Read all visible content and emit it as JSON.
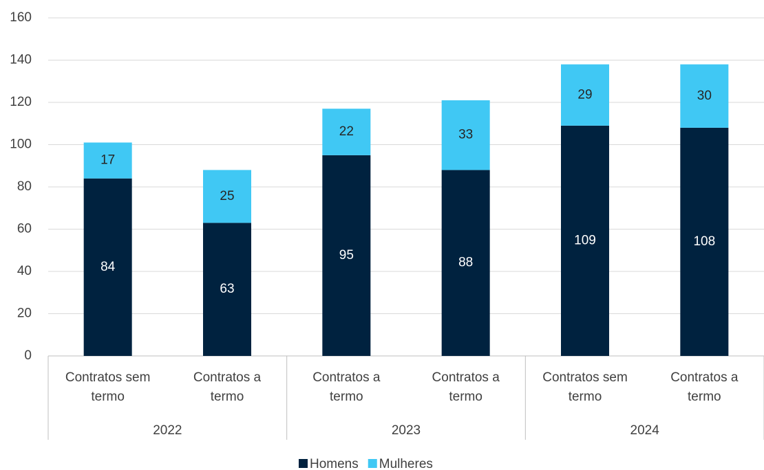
{
  "chart_data": {
    "type": "stacked_bar",
    "categories": [
      "Contratos sem termo",
      "Contratos a termo",
      "Contratos a termo",
      "Contratos a termo",
      "Contratos sem termo",
      "Contratos a termo"
    ],
    "group_labels": [
      "2022",
      "2023",
      "2024"
    ],
    "series": [
      {
        "name": "Homens",
        "color": "#00223f",
        "values": [
          84,
          63,
          95,
          88,
          109,
          108
        ]
      },
      {
        "name": "Mulheres",
        "color": "#40c8f4",
        "values": [
          17,
          25,
          22,
          33,
          29,
          30
        ]
      }
    ],
    "ylim": [
      0,
      160
    ],
    "yticks": [
      0,
      20,
      40,
      60,
      80,
      100,
      120,
      140,
      160
    ],
    "grid": true,
    "legend": "bottom"
  }
}
